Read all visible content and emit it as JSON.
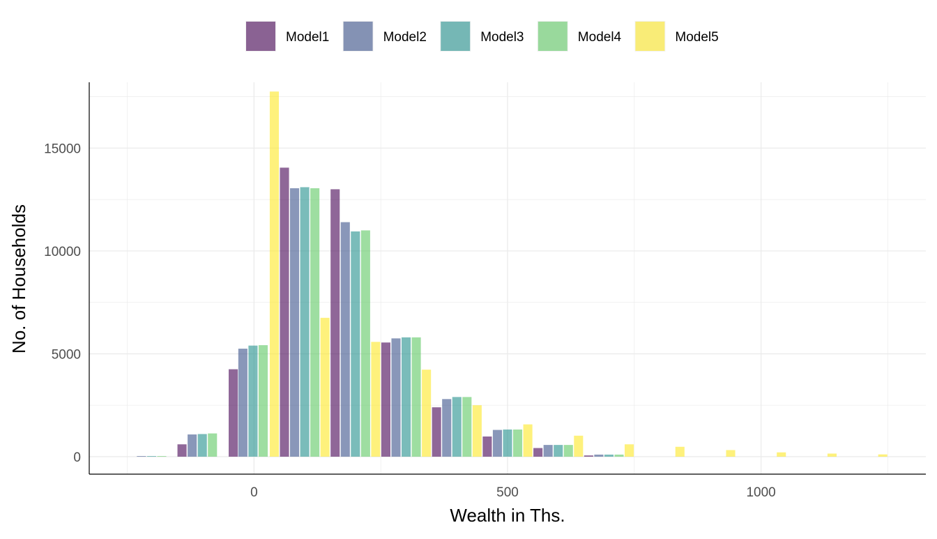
{
  "chart_data": {
    "type": "bar",
    "title": "",
    "xlabel": "Wealth in Ths.",
    "ylabel": "No. of Households",
    "xlim": [
      -325,
      1325
    ],
    "ylim": [
      -850,
      18200
    ],
    "xticks": [
      0,
      500,
      1000
    ],
    "xtick_labels": [
      "0",
      "500",
      "1000"
    ],
    "yticks": [
      0,
      5000,
      10000,
      15000
    ],
    "ytick_labels": [
      "0",
      "5000",
      "10000",
      "15000"
    ],
    "grid": true,
    "legend_position": "top",
    "bar_width": 18,
    "bar_opacity": 0.6,
    "series": [
      {
        "name": "Model1",
        "color": "#440154",
        "x": [
          -142,
          -41,
          60,
          160,
          260,
          360,
          460,
          560,
          660
        ],
        "values": [
          600,
          4250,
          14050,
          13000,
          5550,
          2400,
          980,
          420,
          60
        ]
      },
      {
        "name": "Model2",
        "color": "#3B528B",
        "x": [
          -222,
          -122,
          -22,
          80,
          180,
          280,
          380,
          480,
          580,
          680
        ],
        "values": [
          30,
          1080,
          5250,
          13050,
          11400,
          5750,
          2800,
          1300,
          570,
          100
        ]
      },
      {
        "name": "Model3",
        "color": "#21908C",
        "x": [
          -202,
          -102,
          -2,
          100,
          200,
          300,
          400,
          500,
          600,
          700
        ],
        "values": [
          30,
          1100,
          5400,
          13100,
          10950,
          5800,
          2900,
          1320,
          570,
          100
        ]
      },
      {
        "name": "Model4",
        "color": "#5DC863",
        "x": [
          -182,
          -82,
          18,
          120,
          220,
          320,
          420,
          520,
          620,
          720
        ],
        "values": [
          30,
          1130,
          5420,
          13050,
          11000,
          5800,
          2900,
          1320,
          570,
          100
        ]
      },
      {
        "name": "Model5",
        "color": "#FDE725",
        "x": [
          40,
          140,
          240,
          340,
          440,
          540,
          640,
          740,
          840,
          940,
          1040,
          1140,
          1240
        ],
        "values": [
          17750,
          6750,
          5580,
          4230,
          2500,
          1570,
          1020,
          600,
          480,
          320,
          210,
          150,
          110
        ]
      }
    ]
  }
}
